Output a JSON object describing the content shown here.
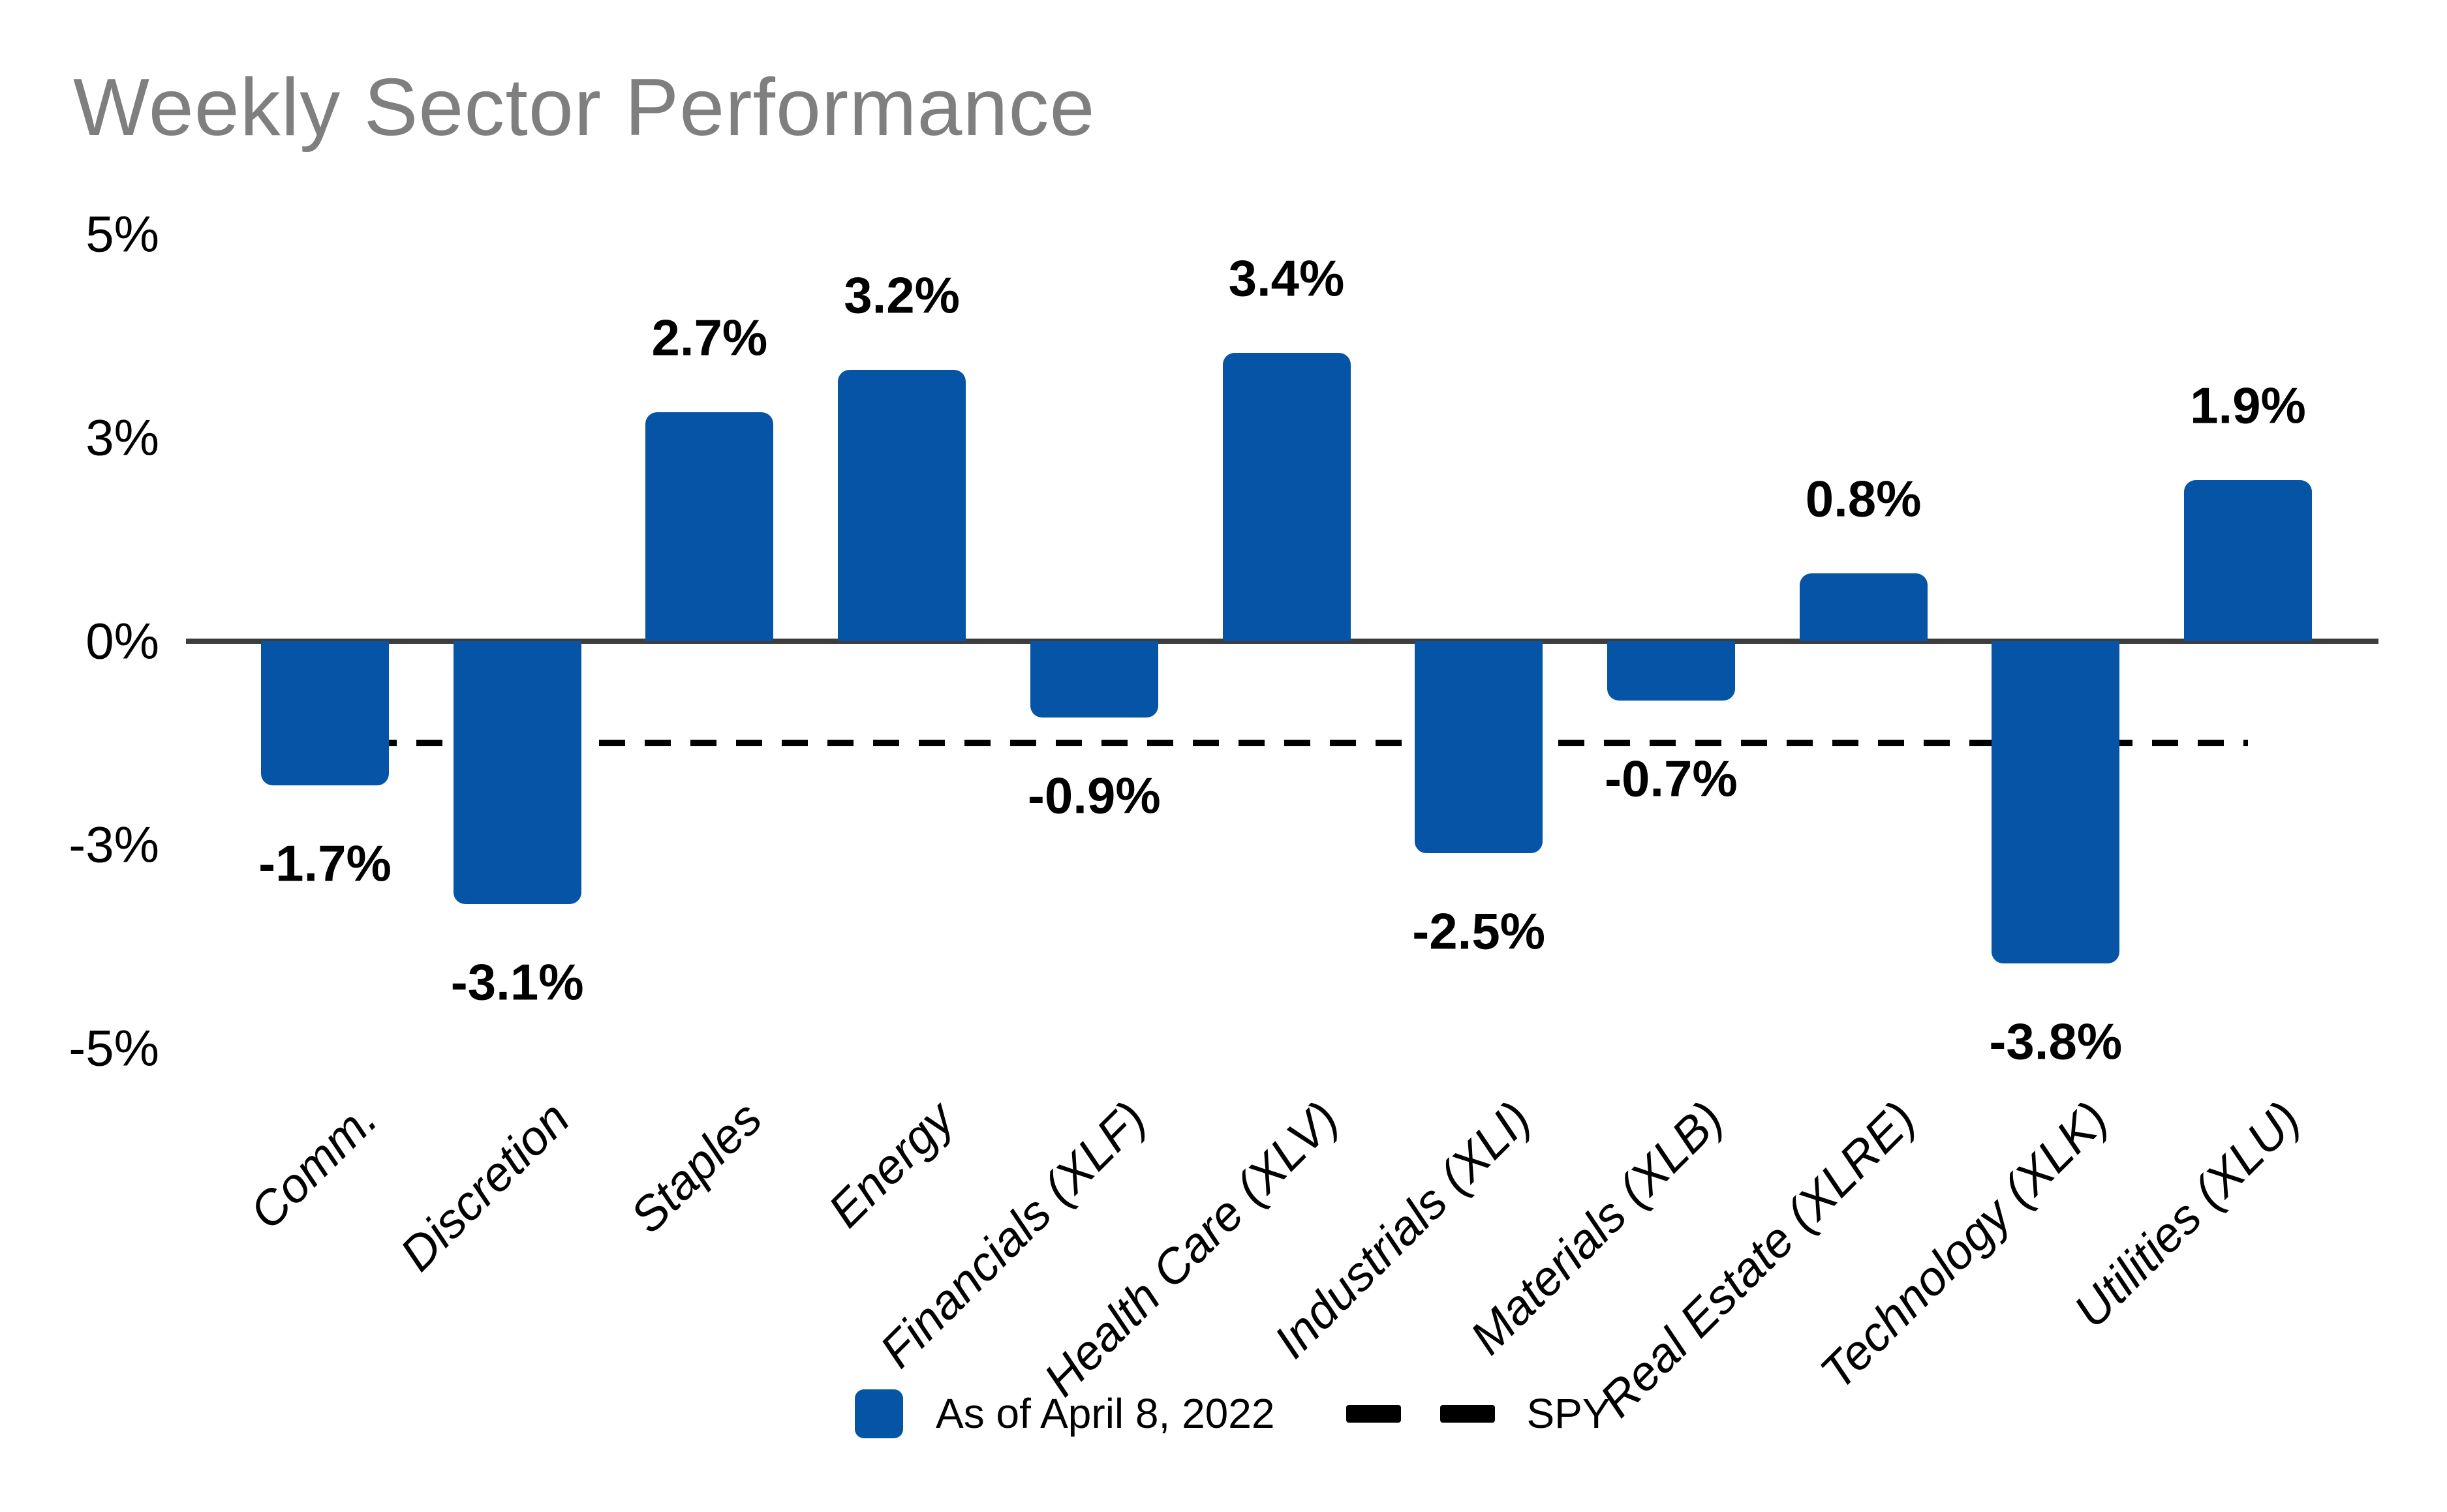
{
  "chart_data": {
    "type": "bar",
    "title": "Weekly Sector Performance",
    "categories": [
      "Comm.",
      "Discretion",
      "Staples",
      "Energy",
      "Financials (XLF)",
      "Health Care (XLV)",
      "Industrials (XLI)",
      "Materials (XLB)",
      "Real Estate (XLRE)",
      "Technology (XLK)",
      "Utilities (XLU)"
    ],
    "values": [
      -1.7,
      -3.1,
      2.7,
      3.2,
      -0.9,
      3.4,
      -2.5,
      -0.7,
      0.8,
      -3.8,
      1.9
    ],
    "value_labels": [
      "-1.7%",
      "-3.1%",
      "2.7%",
      "3.2%",
      "-0.9%",
      "3.4%",
      "-2.5%",
      "-0.7%",
      "0.8%",
      "-3.8%",
      "1.9%"
    ],
    "xlabel": "",
    "ylabel": "",
    "y_axis": {
      "tick_labels": [
        "5%",
        "3%",
        "0%",
        "-3%",
        "-5%"
      ],
      "tick_values": [
        5,
        3,
        0,
        -3,
        -5
      ],
      "grid": "off"
    },
    "spy_line": {
      "value": -1.2,
      "style": "dashed"
    },
    "legend": {
      "position": "bottom-center",
      "bar_label": "As of April 8, 2022",
      "line_label": "SPY"
    },
    "colors": {
      "bar": "#0554A5",
      "title": "#7f7f7f",
      "axis": "#3d3d3d",
      "labels": "#000000",
      "spy_line": "#000000"
    }
  }
}
